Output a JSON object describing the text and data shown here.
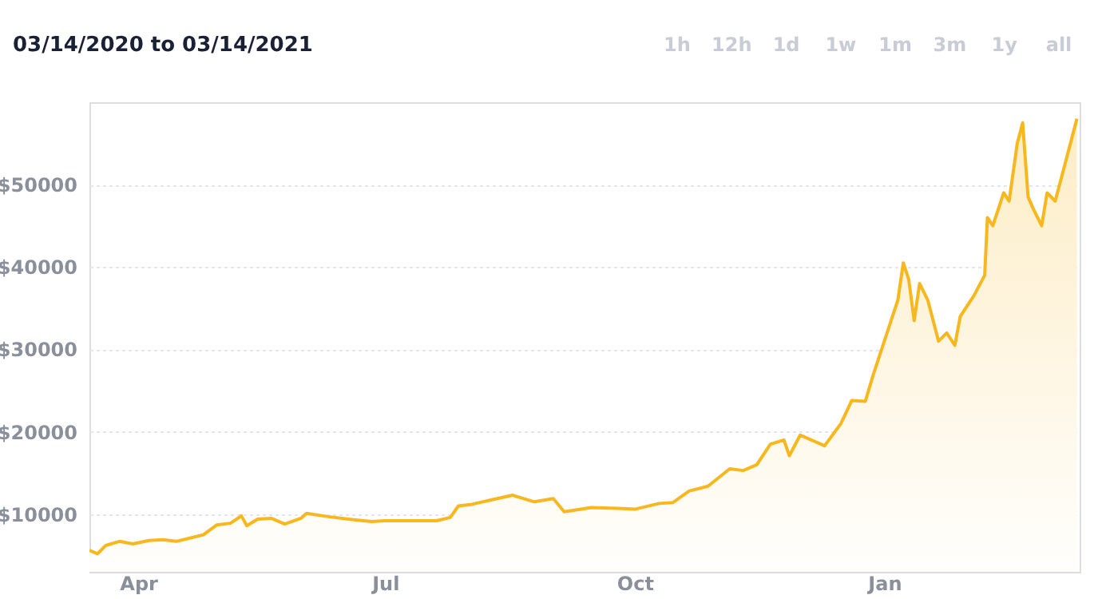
{
  "chart_data": {
    "type": "area",
    "title": "03/14/2020 to 03/14/2021",
    "annotations": [
      "1h",
      "12h",
      "1d",
      "1w",
      "1m",
      "3m",
      "1y",
      "all"
    ],
    "x": [
      "2020-03-14",
      "2020-03-17",
      "2020-03-20",
      "2020-03-25",
      "2020-03-30",
      "2020-04-05",
      "2020-04-10",
      "2020-04-15",
      "2020-04-20",
      "2020-04-25",
      "2020-04-30",
      "2020-05-05",
      "2020-05-09",
      "2020-05-11",
      "2020-05-15",
      "2020-05-20",
      "2020-05-25",
      "2020-05-31",
      "2020-06-02",
      "2020-06-10",
      "2020-06-20",
      "2020-06-26",
      "2020-07-01",
      "2020-07-10",
      "2020-07-20",
      "2020-07-25",
      "2020-07-28",
      "2020-08-02",
      "2020-08-10",
      "2020-08-17",
      "2020-08-25",
      "2020-09-01",
      "2020-09-05",
      "2020-09-15",
      "2020-09-25",
      "2020-10-01",
      "2020-10-10",
      "2020-10-15",
      "2020-10-21",
      "2020-10-28",
      "2020-11-05",
      "2020-11-10",
      "2020-11-15",
      "2020-11-20",
      "2020-11-25",
      "2020-11-27",
      "2020-12-01",
      "2020-12-10",
      "2020-12-16",
      "2020-12-20",
      "2020-12-25",
      "2020-12-28",
      "2021-01-02",
      "2021-01-06",
      "2021-01-08",
      "2021-01-10",
      "2021-01-12",
      "2021-01-14",
      "2021-01-17",
      "2021-01-21",
      "2021-01-24",
      "2021-01-27",
      "2021-01-29",
      "2021-02-03",
      "2021-02-07",
      "2021-02-08",
      "2021-02-10",
      "2021-02-14",
      "2021-02-16",
      "2021-02-19",
      "2021-02-21",
      "2021-02-23",
      "2021-02-25",
      "2021-02-28",
      "2021-03-02",
      "2021-03-05",
      "2021-03-09",
      "2021-03-13"
    ],
    "series": [
      {
        "color": "#f7b71d",
        "values": [
          5600,
          5200,
          6200,
          6700,
          6400,
          6800,
          6900,
          6700,
          7100,
          7500,
          8700,
          8900,
          9800,
          8600,
          9400,
          9500,
          8800,
          9500,
          10100,
          9700,
          9300,
          9100,
          9200,
          9200,
          9200,
          9600,
          11000,
          11200,
          11800,
          12300,
          11500,
          11900,
          10300,
          10800,
          10700,
          10600,
          11300,
          11400,
          12800,
          13400,
          15500,
          15300,
          16000,
          18500,
          19000,
          17100,
          19600,
          18300,
          21000,
          23800,
          23700,
          27000,
          32000,
          36000,
          40500,
          38500,
          33500,
          38000,
          36000,
          31000,
          32000,
          30500,
          34000,
          36500,
          39000,
          46000,
          45000,
          49000,
          48000,
          55000,
          57500,
          48500,
          47000,
          45000,
          49000,
          48000,
          53000,
          58000
        ]
      }
    ],
    "xlim": [
      "2020-03-14",
      "2021-03-14"
    ],
    "xticks": [
      {
        "value": "2020-04-01",
        "label": "Apr"
      },
      {
        "value": "2020-07-01",
        "label": "Jul"
      },
      {
        "value": "2020-10-01",
        "label": "Oct"
      },
      {
        "value": "2021-01-01",
        "label": "Jan"
      }
    ],
    "ylim": [
      3000,
      60000
    ],
    "yticks": [
      {
        "value": 10000,
        "label": "$10000"
      },
      {
        "value": 20000,
        "label": "$20000"
      },
      {
        "value": 30000,
        "label": "$30000"
      },
      {
        "value": 40000,
        "label": "$40000"
      },
      {
        "value": 50000,
        "label": "$50000"
      }
    ],
    "grid": "y"
  }
}
